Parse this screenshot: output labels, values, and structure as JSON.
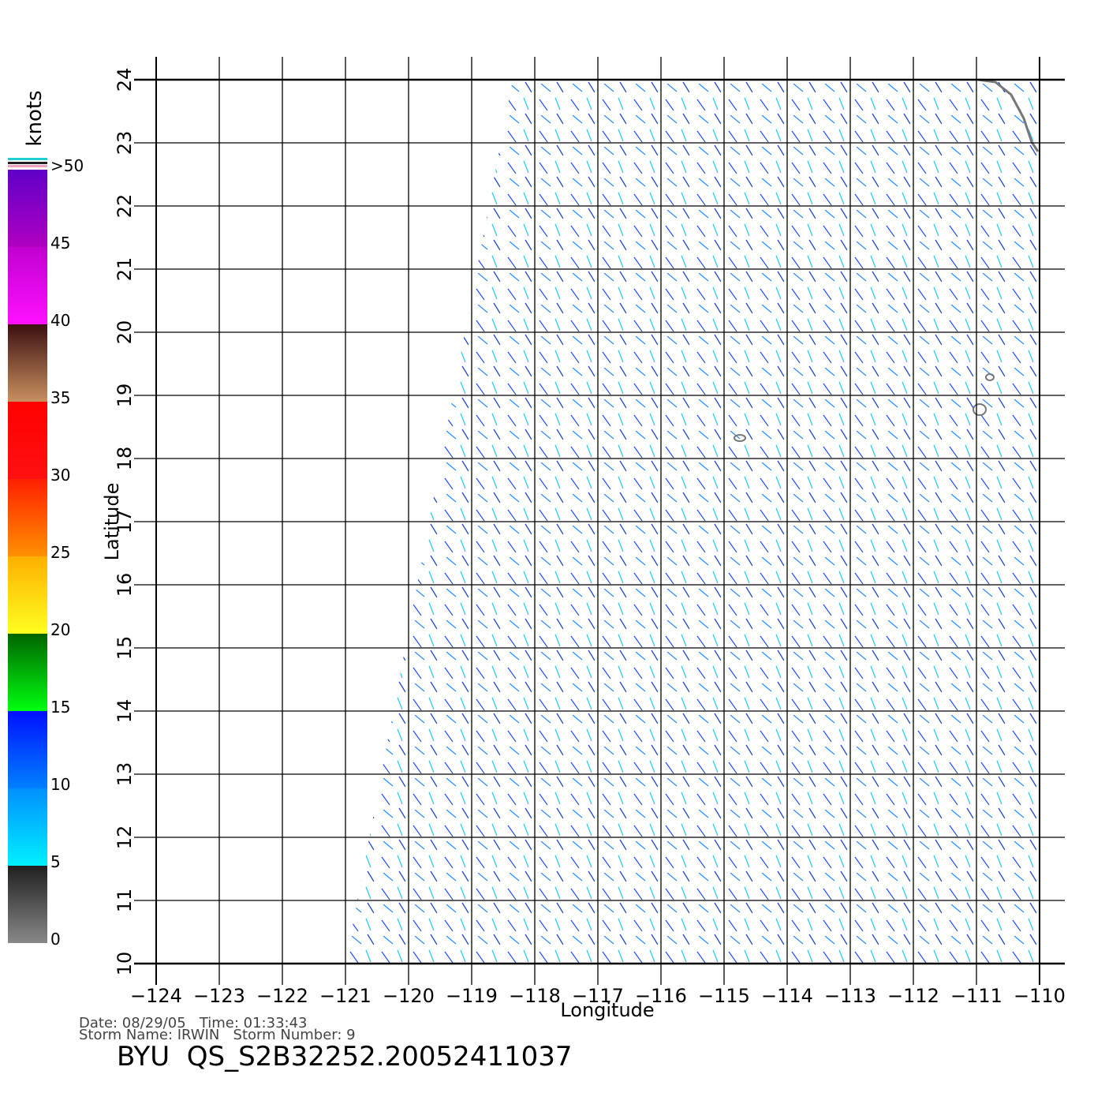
{
  "chart_data": {
    "type": "wind-map",
    "xlabel": "Longitude",
    "ylabel": "Latitude",
    "xlim": [
      -124,
      -110
    ],
    "ylim": [
      10,
      24
    ],
    "xticks": [
      {
        "value": -124,
        "label": "−124"
      },
      {
        "value": -123,
        "label": "−123"
      },
      {
        "value": -122,
        "label": "−122"
      },
      {
        "value": -121,
        "label": "−121"
      },
      {
        "value": -120,
        "label": "−120"
      },
      {
        "value": -119,
        "label": "−119"
      },
      {
        "value": -118,
        "label": "−118"
      },
      {
        "value": -117,
        "label": "−117"
      },
      {
        "value": -116,
        "label": "−116"
      },
      {
        "value": -115,
        "label": "−115"
      },
      {
        "value": -114,
        "label": "−114"
      },
      {
        "value": -113,
        "label": "−113"
      },
      {
        "value": -112,
        "label": "−112"
      },
      {
        "value": -111,
        "label": "−111"
      },
      {
        "value": -110,
        "label": "−110"
      }
    ],
    "yticks": [
      10,
      11,
      12,
      13,
      14,
      15,
      16,
      17,
      18,
      19,
      20,
      21,
      22,
      23,
      24
    ],
    "grid": true,
    "colorbar": {
      "label": "knots",
      "ticks": [
        0,
        5,
        10,
        15,
        20,
        25,
        30,
        35,
        40,
        45,
        {
          "value": 50,
          "label": ">50"
        }
      ],
      "colors": [
        [
          "#888888",
          "#202020"
        ],
        [
          "#00f0ff",
          "#0090ff"
        ],
        [
          "#0080ff",
          "#0010ff"
        ],
        [
          "#00ff10",
          "#006400"
        ],
        [
          "#ffff20",
          "#ffb000"
        ],
        [
          "#ff9000",
          "#ff2000"
        ],
        [
          "#ff1010",
          "#ff0000"
        ],
        [
          "#c89060",
          "#3c1010"
        ],
        [
          "#ff10ff",
          "#c000d0"
        ],
        [
          "#b000c0",
          "#6000c8"
        ]
      ]
    },
    "footer": {
      "line1": "Date: 08/29/05   Time: 01:33:43",
      "line2": "Storm Name: IRWIN   Storm Number: 9",
      "product": "BYU  QS_S2B32252.20052411037"
    }
  }
}
